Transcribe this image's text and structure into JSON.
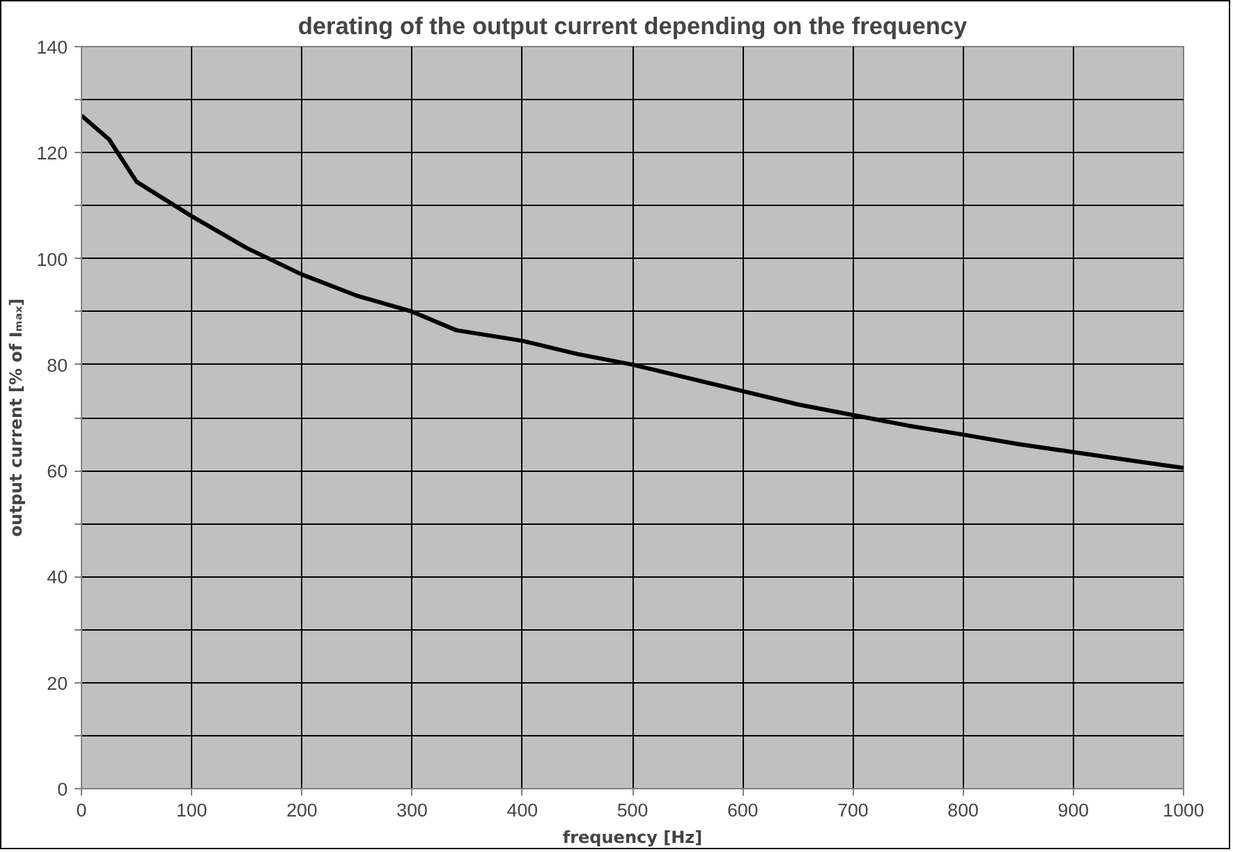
{
  "chart_data": {
    "type": "line",
    "title": "derating of the output current depending on the frequency",
    "xlabel": "frequency [Hz]",
    "ylabel": "output current [% of Iₘₐₓ]",
    "x": [
      0,
      25,
      50,
      100,
      150,
      200,
      250,
      300,
      340,
      400,
      450,
      500,
      550,
      600,
      650,
      700,
      750,
      800,
      850,
      900,
      950,
      1000
    ],
    "series": [
      {
        "color": "#000000",
        "values": [
          127,
          122.5,
          114.5,
          108,
          102,
          97,
          93,
          90,
          86.5,
          84.5,
          82,
          80,
          77.5,
          75,
          72.5,
          70.5,
          68.5,
          66.8,
          65,
          63.5,
          62,
          60.5
        ]
      }
    ],
    "xlim": [
      0,
      1000
    ],
    "xticks": [
      0,
      100,
      200,
      300,
      400,
      500,
      600,
      700,
      800,
      900,
      1000
    ],
    "ylim": [
      0,
      140
    ],
    "yticks": [
      0,
      {
        "value": 10,
        "label": null
      },
      20,
      {
        "value": 30,
        "label": null
      },
      40,
      {
        "value": 50,
        "label": null
      },
      60,
      {
        "value": 70,
        "label": null
      },
      80,
      {
        "value": 90,
        "label": null
      },
      100,
      {
        "value": 110,
        "label": null
      },
      120,
      {
        "value": 130,
        "label": null
      },
      140
    ],
    "grid": true,
    "marker": "none",
    "line_style": "solid"
  }
}
